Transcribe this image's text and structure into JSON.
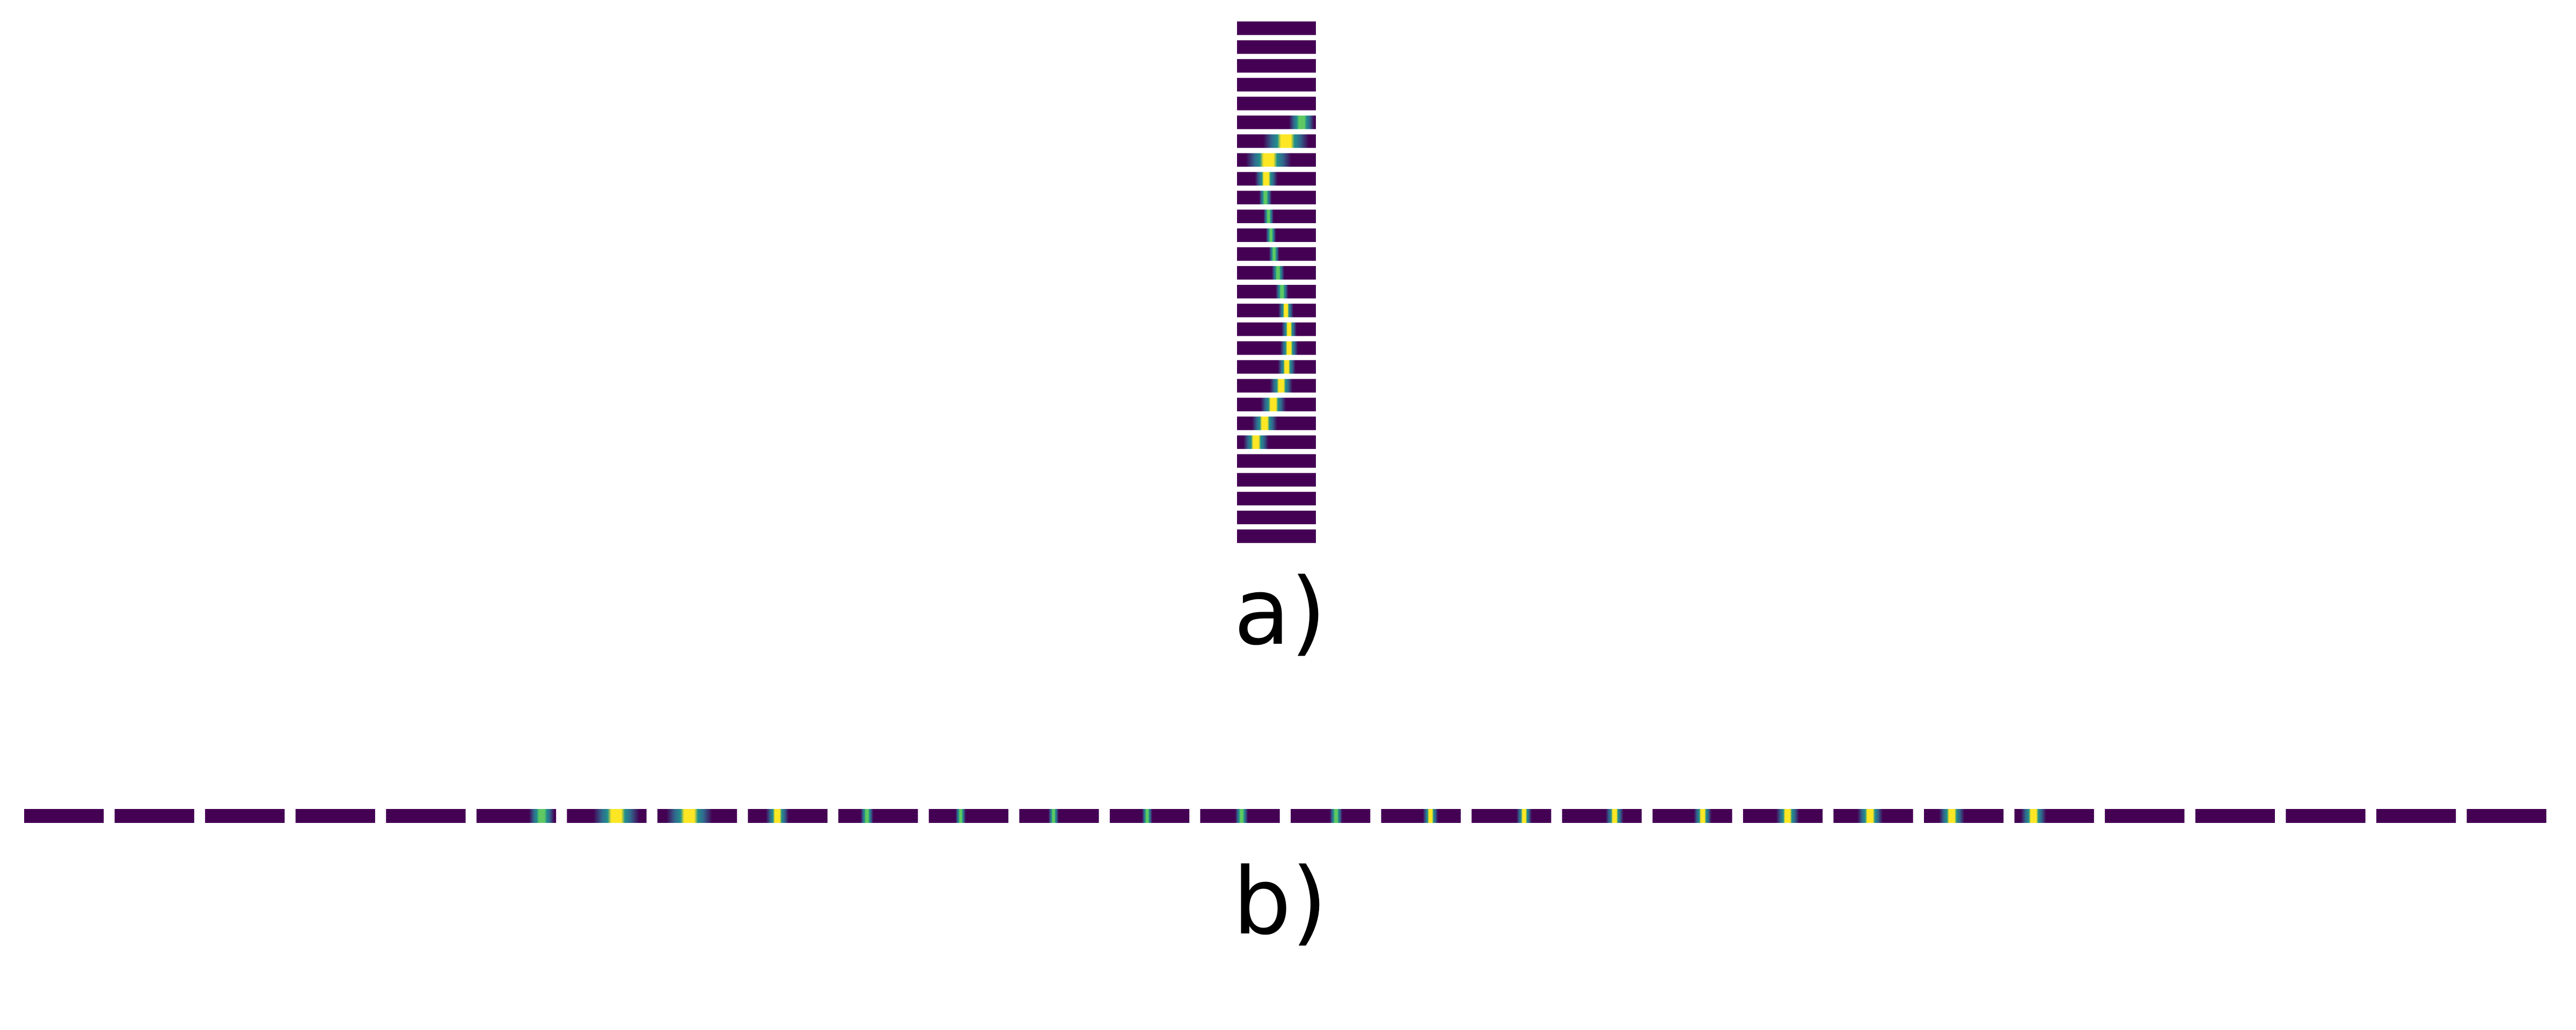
{
  "panel_a": {
    "label": "a)",
    "strip_count": 28,
    "peaks": [
      null,
      null,
      null,
      null,
      null,
      {
        "center": 0.82,
        "width": 0.1,
        "intensity": 0.85
      },
      {
        "center": 0.62,
        "width": 0.18,
        "intensity": 1.0
      },
      {
        "center": 0.4,
        "width": 0.18,
        "intensity": 1.0
      },
      {
        "center": 0.37,
        "width": 0.09,
        "intensity": 1.0
      },
      {
        "center": 0.36,
        "width": 0.05,
        "intensity": 0.85
      },
      {
        "center": 0.4,
        "width": 0.04,
        "intensity": 0.75
      },
      {
        "center": 0.43,
        "width": 0.04,
        "intensity": 0.75
      },
      {
        "center": 0.47,
        "width": 0.04,
        "intensity": 0.75
      },
      {
        "center": 0.52,
        "width": 0.05,
        "intensity": 0.85
      },
      {
        "center": 0.57,
        "width": 0.05,
        "intensity": 0.9
      },
      {
        "center": 0.62,
        "width": 0.06,
        "intensity": 1.0
      },
      {
        "center": 0.66,
        "width": 0.06,
        "intensity": 1.0
      },
      {
        "center": 0.66,
        "width": 0.07,
        "intensity": 1.0
      },
      {
        "center": 0.63,
        "width": 0.07,
        "intensity": 1.0
      },
      {
        "center": 0.56,
        "width": 0.09,
        "intensity": 1.0
      },
      {
        "center": 0.46,
        "width": 0.1,
        "intensity": 1.0
      },
      {
        "center": 0.35,
        "width": 0.1,
        "intensity": 1.0
      },
      {
        "center": 0.24,
        "width": 0.1,
        "intensity": 1.0
      },
      null,
      null,
      null,
      null,
      null
    ]
  },
  "panel_b": {
    "label": "b)",
    "segment_count": 28
  },
  "colors": {
    "background": "#440154",
    "low": "#31688e",
    "mid": "#21918c",
    "high": "#5ec962",
    "peak": "#fde725"
  }
}
